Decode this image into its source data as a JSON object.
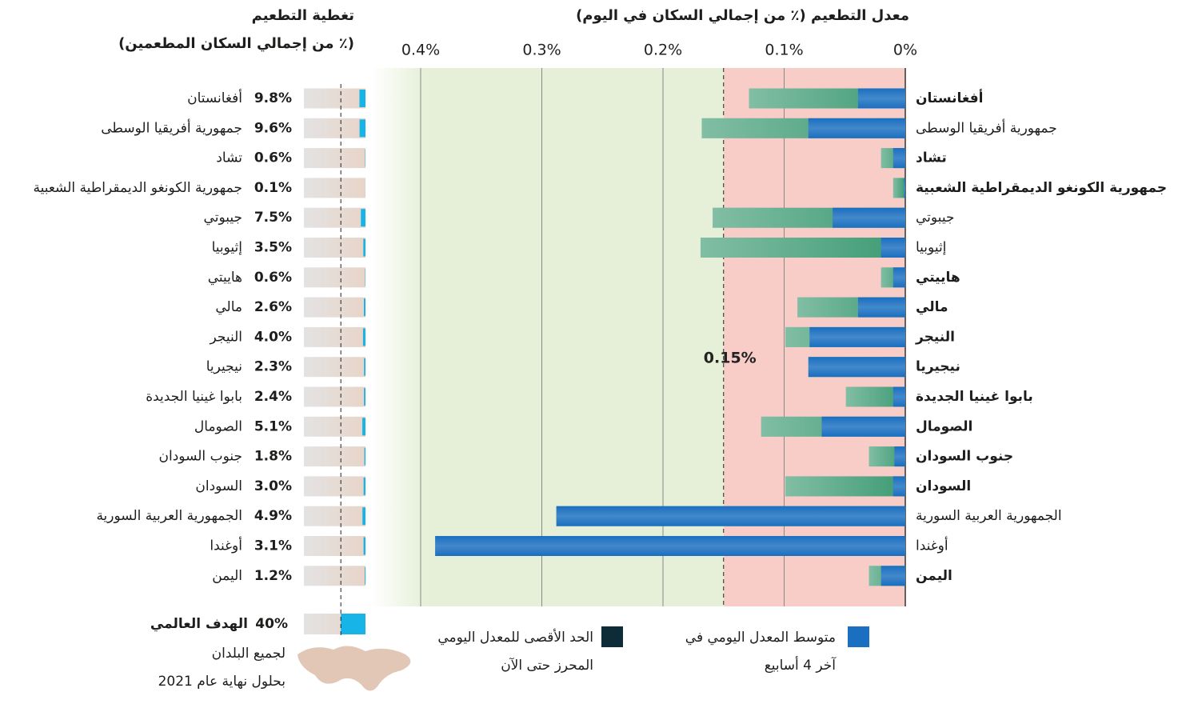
{
  "chart_data": [
    {
      "type": "bar",
      "orientation": "horizontal",
      "title": "معدل التطعيم (٪ من إجمالي السكان في اليوم)",
      "categories": [
        "أفغانستان",
        "جمهورية أفريقيا الوسطى",
        "تشاد",
        "جمهورية الكونغو الديمقراطية الشعبية",
        "جيبوتي",
        "إثيوبيا",
        "هاييتي",
        "مالي",
        "النيجر",
        "نيجيريا",
        "بابوا غينيا الجديدة",
        "الصومال",
        "جنوب السودان",
        "السودان",
        "الجمهورية العربية السورية",
        "أوغندا",
        "اليمن"
      ],
      "series": [
        {
          "name": "الحد الأقصى للمعدل اليومي المحرز حتى الآن",
          "color": "#3e9b74",
          "legend_color": "#0d2c38",
          "values": [
            0.129,
            0.168,
            0.02,
            0.01,
            0.159,
            0.169,
            0.02,
            0.089,
            0.099,
            0.08,
            0.049,
            0.119,
            0.03,
            0.099,
            0.288,
            0.388,
            0.03
          ]
        },
        {
          "name": "متوسط المعدل اليومي في آخر 4 أسابيع",
          "color": "#1a6fc0",
          "legend_color": "#1a6fc0",
          "values": [
            0.039,
            0.08,
            0.01,
            0.001,
            0.06,
            0.02,
            0.01,
            0.039,
            0.079,
            0.08,
            0.01,
            0.069,
            0.009,
            0.01,
            0.288,
            0.388,
            0.02
          ]
        }
      ],
      "xlim": [
        0,
        0.4
      ],
      "xticks": [
        {
          "value": 0,
          "label": "0%"
        },
        {
          "value": 0.1,
          "label": "0.1%"
        },
        {
          "value": 0.2,
          "label": "0.2%"
        },
        {
          "value": 0.3,
          "label": "0.3%"
        },
        {
          "value": 0.4,
          "label": "0.4%"
        }
      ],
      "threshold": {
        "value": 0.15,
        "label": "0.15%"
      },
      "below_color": "#e0245e",
      "grid": true
    },
    {
      "type": "bar",
      "orientation": "horizontal",
      "title": "تغطية التطعيم",
      "subtitle": "(٪ من إجمالي السكان المطعمين)",
      "categories": [
        "أفغانستان",
        "جمهورية أفريقيا الوسطى",
        "تشاد",
        "جمهورية الكونغو الديمقراطية الشعبية",
        "جيبوتي",
        "إثيوبيا",
        "هاييتي",
        "مالي",
        "النيجر",
        "نيجيريا",
        "بابوا غينيا الجديدة",
        "الصومال",
        "جنوب السودان",
        "السودان",
        "الجمهورية العربية السورية",
        "أوغندا",
        "اليمن"
      ],
      "values": [
        9.8,
        9.6,
        0.6,
        0.1,
        7.5,
        3.5,
        0.6,
        2.6,
        4.0,
        2.3,
        2.4,
        5.1,
        1.8,
        3.0,
        4.9,
        3.1,
        1.2
      ],
      "value_labels": [
        "9.8%",
        "9.6%",
        "0.6%",
        "0.1%",
        "7.5%",
        "3.5%",
        "0.6%",
        "2.6%",
        "4.0%",
        "2.3%",
        "2.4%",
        "5.1%",
        "1.8%",
        "3.0%",
        "4.9%",
        "3.1%",
        "1.2%"
      ],
      "xlim": [
        0,
        100
      ],
      "color": "#17b4e8",
      "target": {
        "value": 40,
        "label": "40%",
        "text": "الهدف العالمي",
        "note": [
          "لجميع البلدان",
          "بحلول نهاية عام 2021"
        ]
      }
    }
  ]
}
